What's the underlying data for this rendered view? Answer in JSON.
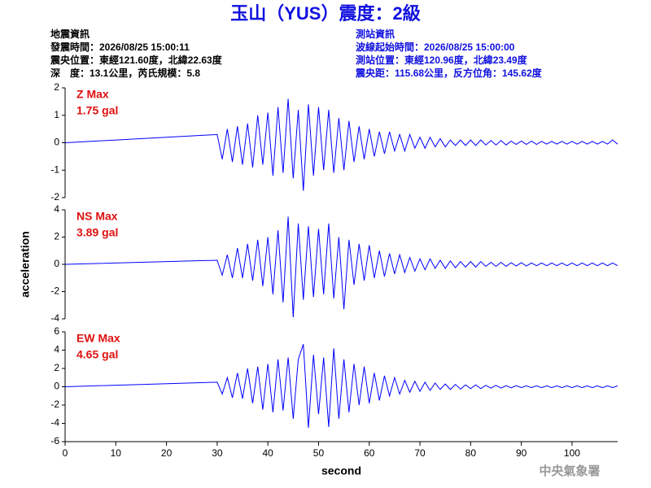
{
  "header": {
    "title": "玉山（YUS）震度：2級",
    "left": [
      "地震資訊",
      "發震時間：2026/08/25 15:00:11",
      "震央位置：東經121.60度，北緯22.63度",
      "深　度：13.1公里，芮氏規模：5.8"
    ],
    "right": [
      "測站資訊",
      "波線起始時間：2026/08/25 15:00:00",
      "測站位置：東經120.96度，北緯23.49度",
      "震央距：115.68公里，反方位角：145.62度"
    ]
  },
  "chart_data": [
    {
      "type": "line",
      "annotations": [
        "Z Max",
        "1.75 gal"
      ],
      "x": [
        0,
        30,
        31,
        32,
        33,
        34,
        35,
        36,
        37,
        38,
        39,
        40,
        41,
        42,
        43,
        44,
        45,
        46,
        47,
        48,
        49,
        50,
        51,
        52,
        53,
        54,
        55,
        56,
        57,
        58,
        59,
        60,
        61,
        62,
        63,
        64,
        65,
        66,
        67,
        68,
        69,
        70,
        71,
        72,
        73,
        74,
        75,
        76,
        77,
        78,
        79,
        80,
        81,
        82,
        83,
        84,
        85,
        86,
        87,
        88,
        89,
        90,
        91,
        92,
        93,
        94,
        95,
        96,
        97,
        98,
        99,
        100,
        101,
        102,
        103,
        104,
        105,
        106,
        107,
        108,
        109
      ],
      "series": [
        {
          "color": "#0000ff",
          "values": [
            0,
            0.3,
            -0.6,
            0.5,
            -0.7,
            0.6,
            -0.8,
            0.7,
            -0.9,
            1.0,
            -0.8,
            1.1,
            -1.2,
            1.3,
            -1.1,
            1.6,
            -1.3,
            1.2,
            -1.75,
            1.4,
            -1.2,
            1.3,
            -1.0,
            1.2,
            -1.1,
            0.9,
            -1.0,
            0.8,
            -0.7,
            0.6,
            -0.6,
            0.5,
            -0.5,
            0.4,
            -0.4,
            0.4,
            -0.3,
            0.3,
            -0.3,
            0.3,
            -0.2,
            0.2,
            -0.2,
            0.2,
            -0.15,
            0.15,
            -0.15,
            0.1,
            -0.1,
            0.1,
            -0.1,
            0.1,
            -0.1,
            0.1,
            -0.08,
            0.08,
            -0.08,
            0.08,
            -0.08,
            0.06,
            -0.06,
            0.06,
            -0.06,
            0.06,
            -0.06,
            0.05,
            -0.05,
            0.05,
            -0.05,
            0.05,
            -0.05,
            0.05,
            -0.05,
            0.05,
            -0.05,
            0.05,
            -0.05,
            0.05,
            -0.05,
            0.1,
            -0.05
          ]
        }
      ],
      "xlim": [
        0,
        109
      ],
      "ylim": [
        -2,
        2
      ],
      "yticks": [
        -2,
        -1,
        0,
        1,
        2
      ]
    },
    {
      "type": "line",
      "annotations": [
        "NS Max",
        "3.89 gal"
      ],
      "ylabel": "acceleration",
      "x": [
        0,
        30,
        31,
        32,
        33,
        34,
        35,
        36,
        37,
        38,
        39,
        40,
        41,
        42,
        43,
        44,
        45,
        46,
        47,
        48,
        49,
        50,
        51,
        52,
        53,
        54,
        55,
        56,
        57,
        58,
        59,
        60,
        61,
        62,
        63,
        64,
        65,
        66,
        67,
        68,
        69,
        70,
        71,
        72,
        73,
        74,
        75,
        76,
        77,
        78,
        79,
        80,
        81,
        82,
        83,
        84,
        85,
        86,
        87,
        88,
        89,
        90,
        91,
        92,
        93,
        94,
        95,
        96,
        97,
        98,
        99,
        100,
        101,
        102,
        103,
        104,
        105,
        106,
        107,
        108,
        109
      ],
      "series": [
        {
          "color": "#0000ff",
          "values": [
            0,
            0.3,
            -0.8,
            0.7,
            -1.0,
            1.2,
            -1.0,
            1.5,
            -1.2,
            1.8,
            -1.6,
            2.0,
            -2.2,
            2.5,
            -2.8,
            3.5,
            -3.89,
            3.0,
            -2.6,
            2.8,
            -2.4,
            2.6,
            -2.2,
            3.0,
            -2.5,
            2.0,
            -3.3,
            1.8,
            -1.5,
            1.5,
            -1.2,
            1.4,
            -1.0,
            1.0,
            -0.9,
            0.8,
            -0.7,
            0.7,
            -0.6,
            0.5,
            -0.5,
            0.4,
            -0.4,
            0.4,
            -0.3,
            0.3,
            -0.3,
            0.25,
            -0.25,
            0.2,
            -0.2,
            0.2,
            -0.2,
            0.2,
            -0.15,
            0.15,
            -0.15,
            0.15,
            -0.15,
            0.12,
            -0.12,
            0.12,
            -0.12,
            0.1,
            -0.1,
            0.1,
            -0.1,
            0.1,
            -0.1,
            0.1,
            -0.1,
            0.1,
            -0.1,
            0.1,
            -0.1,
            0.1,
            -0.1,
            0.1,
            -0.1,
            0.1,
            -0.1
          ]
        }
      ],
      "xlim": [
        0,
        109
      ],
      "ylim": [
        -4,
        4
      ],
      "yticks": [
        -4,
        -2,
        0,
        2,
        4
      ]
    },
    {
      "type": "line",
      "annotations": [
        "EW Max",
        "4.65 gal"
      ],
      "xlabel": "second",
      "x": [
        0,
        30,
        31,
        32,
        33,
        34,
        35,
        36,
        37,
        38,
        39,
        40,
        41,
        42,
        43,
        44,
        45,
        46,
        47,
        48,
        49,
        50,
        51,
        52,
        53,
        54,
        55,
        56,
        57,
        58,
        59,
        60,
        61,
        62,
        63,
        64,
        65,
        66,
        67,
        68,
        69,
        70,
        71,
        72,
        73,
        74,
        75,
        76,
        77,
        78,
        79,
        80,
        81,
        82,
        83,
        84,
        85,
        86,
        87,
        88,
        89,
        90,
        91,
        92,
        93,
        94,
        95,
        96,
        97,
        98,
        99,
        100,
        101,
        102,
        103,
        104,
        105,
        106,
        107,
        108,
        109
      ],
      "series": [
        {
          "color": "#0000ff",
          "values": [
            0,
            0.5,
            -0.8,
            1.0,
            -1.2,
            1.5,
            -1.3,
            2.0,
            -1.8,
            2.2,
            -2.5,
            2.5,
            -2.8,
            3.0,
            -2.6,
            3.2,
            -3.5,
            3.0,
            4.65,
            -4.5,
            3.5,
            -3.0,
            3.2,
            -4.4,
            4.2,
            -3.5,
            3.0,
            -2.8,
            2.5,
            -2.0,
            2.2,
            -1.8,
            1.5,
            -1.5,
            1.2,
            -1.0,
            1.0,
            -0.8,
            0.7,
            -0.6,
            0.6,
            -0.5,
            0.5,
            -0.4,
            0.4,
            -0.3,
            0.3,
            -0.3,
            0.25,
            -0.25,
            0.2,
            -0.2,
            0.2,
            -0.2,
            0.15,
            -0.15,
            0.15,
            -0.15,
            0.12,
            -0.12,
            0.12,
            -0.1,
            0.1,
            -0.1,
            0.1,
            -0.1,
            0.1,
            -0.1,
            0.1,
            -0.1,
            0.1,
            -0.1,
            0.1,
            -0.1,
            0.1,
            -0.1,
            0.1,
            -0.1,
            0.1,
            -0.1,
            0.1
          ]
        }
      ],
      "xlim": [
        0,
        109
      ],
      "ylim": [
        -6,
        6
      ],
      "yticks": [
        -6,
        -4,
        -2,
        0,
        2,
        4,
        6
      ],
      "xticks": [
        0,
        10,
        20,
        30,
        40,
        50,
        60,
        70,
        80,
        90,
        100
      ]
    }
  ],
  "footer": "中央氣象署"
}
